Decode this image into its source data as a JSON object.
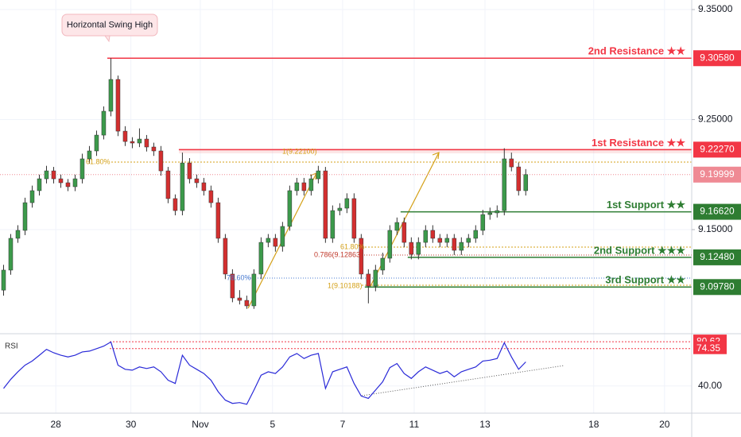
{
  "chart_data": {
    "type": "candlestick",
    "ylim": [
      9.0554,
      9.3587
    ],
    "yticks": [
      {
        "value": 9.35,
        "label": "9.35000"
      },
      {
        "value": 9.25,
        "label": "9.25000"
      },
      {
        "value": 9.15,
        "label": "9.15000"
      }
    ],
    "xlim": [
      0,
      96.7
    ],
    "xticks": [
      {
        "value": 7.8,
        "label": "28"
      },
      {
        "value": 18.3,
        "label": "30"
      },
      {
        "value": 28.0,
        "label": "Nov"
      },
      {
        "value": 38.1,
        "label": "5"
      },
      {
        "value": 47.9,
        "label": "7"
      },
      {
        "value": 57.9,
        "label": "11"
      },
      {
        "value": 67.8,
        "label": "13"
      },
      {
        "value": 83.0,
        "label": "18"
      },
      {
        "value": 92.9,
        "label": "20"
      }
    ],
    "grid": true,
    "up_color": "#3c9a4b",
    "down_color": "#d32f2f",
    "candles": [
      [
        9.095,
        9.118,
        9.09,
        9.1132
      ],
      [
        9.1132,
        9.146,
        9.109,
        9.1421
      ],
      [
        9.1421,
        9.154,
        9.138,
        9.1493
      ],
      [
        9.1493,
        9.179,
        9.145,
        9.1745
      ],
      [
        9.1745,
        9.19,
        9.17,
        9.1854
      ],
      [
        9.1854,
        9.2,
        9.181,
        9.1962
      ],
      [
        9.1962,
        9.208,
        9.192,
        9.2034
      ],
      [
        9.2034,
        9.207,
        9.192,
        9.1962
      ],
      [
        9.1962,
        9.2,
        9.188,
        9.1926
      ],
      [
        9.1926,
        9.196,
        9.185,
        9.189
      ],
      [
        9.189,
        9.2,
        9.185,
        9.1962
      ],
      [
        9.1962,
        9.219,
        9.192,
        9.2143
      ],
      [
        9.2143,
        9.226,
        9.21,
        9.2215
      ],
      [
        9.2215,
        9.24,
        9.217,
        9.2359
      ],
      [
        9.2359,
        9.262,
        9.232,
        9.2576
      ],
      [
        9.2576,
        9.3058,
        9.253,
        9.2865
      ],
      [
        9.2865,
        9.29,
        9.235,
        9.2395
      ],
      [
        9.2395,
        9.244,
        9.226,
        9.2301
      ],
      [
        9.2301,
        9.234,
        9.224,
        9.2287
      ],
      [
        9.2287,
        9.242,
        9.225,
        9.2323
      ],
      [
        9.2323,
        9.236,
        9.221,
        9.2251
      ],
      [
        9.2251,
        9.229,
        9.217,
        9.2215
      ],
      [
        9.2215,
        9.226,
        9.199,
        9.2034
      ],
      [
        9.2034,
        9.207,
        9.174,
        9.1782
      ],
      [
        9.1782,
        9.182,
        9.163,
        9.1673
      ],
      [
        9.1673,
        9.22,
        9.163,
        9.2106
      ],
      [
        9.2106,
        9.215,
        9.192,
        9.1962
      ],
      [
        9.1962,
        9.2,
        9.188,
        9.1926
      ],
      [
        9.1926,
        9.197,
        9.181,
        9.1854
      ],
      [
        9.1854,
        9.19,
        9.17,
        9.1745
      ],
      [
        9.1745,
        9.179,
        9.138,
        9.1421
      ],
      [
        9.1421,
        9.146,
        9.105,
        9.1096
      ],
      [
        9.1096,
        9.114,
        9.084,
        9.0879
      ],
      [
        9.0879,
        9.095,
        9.082,
        9.0857
      ],
      [
        9.0857,
        9.09,
        9.078,
        9.0807
      ],
      [
        9.0807,
        9.114,
        9.078,
        9.1096
      ],
      [
        9.1096,
        9.143,
        9.105,
        9.1384
      ],
      [
        9.1384,
        9.146,
        9.134,
        9.1421
      ],
      [
        9.1421,
        9.146,
        9.13,
        9.1348
      ],
      [
        9.1348,
        9.157,
        9.13,
        9.1529
      ],
      [
        9.1529,
        9.19,
        9.149,
        9.1854
      ],
      [
        9.1854,
        9.197,
        9.181,
        9.1926
      ],
      [
        9.1926,
        9.197,
        9.181,
        9.1854
      ],
      [
        9.1854,
        9.2,
        9.181,
        9.1962
      ],
      [
        9.1962,
        9.208,
        9.192,
        9.2034
      ],
      [
        9.2034,
        9.207,
        9.138,
        9.1421
      ],
      [
        9.1421,
        9.172,
        9.138,
        9.1673
      ],
      [
        9.1673,
        9.174,
        9.163,
        9.1695
      ],
      [
        9.1695,
        9.183,
        9.165,
        9.1782
      ],
      [
        9.1782,
        9.183,
        9.138,
        9.1421
      ],
      [
        9.1421,
        9.146,
        9.105,
        9.1096
      ],
      [
        9.1096,
        9.114,
        9.083,
        9.0987
      ],
      [
        9.0987,
        9.118,
        9.094,
        9.1132
      ],
      [
        9.1132,
        9.129,
        9.109,
        9.124
      ],
      [
        9.124,
        9.154,
        9.12,
        9.1493
      ],
      [
        9.1493,
        9.161,
        9.145,
        9.1565
      ],
      [
        9.1565,
        9.161,
        9.134,
        9.1384
      ],
      [
        9.1384,
        9.143,
        9.123,
        9.1276
      ],
      [
        9.1276,
        9.143,
        9.123,
        9.1384
      ],
      [
        9.1384,
        9.154,
        9.134,
        9.1493
      ],
      [
        9.1493,
        9.154,
        9.138,
        9.1421
      ],
      [
        9.1421,
        9.146,
        9.134,
        9.1384
      ],
      [
        9.1384,
        9.146,
        9.134,
        9.1421
      ],
      [
        9.1421,
        9.146,
        9.127,
        9.1312
      ],
      [
        9.1312,
        9.143,
        9.127,
        9.1384
      ],
      [
        9.1384,
        9.146,
        9.134,
        9.1421
      ],
      [
        9.1421,
        9.154,
        9.138,
        9.1493
      ],
      [
        9.1493,
        9.168,
        9.145,
        9.1637
      ],
      [
        9.1637,
        9.17,
        9.159,
        9.1652
      ],
      [
        9.1652,
        9.172,
        9.161,
        9.1673
      ],
      [
        9.1673,
        9.224,
        9.163,
        9.2143
      ],
      [
        9.2143,
        9.22,
        9.203,
        9.207
      ],
      [
        9.207,
        9.211,
        9.181,
        9.1854
      ],
      [
        9.1854,
        9.205,
        9.181,
        9.19999
      ]
    ],
    "current_price": {
      "value": 9.19999,
      "label": "9.19999",
      "color": "#ef8a94"
    },
    "levels": [
      {
        "name": "2nd Resistance ★★",
        "value": 9.3058,
        "label": "9.30580",
        "color": "#f23645"
      },
      {
        "name": "1st Resistance ★★",
        "value": 9.2227,
        "label": "9.22270",
        "color": "#f23645"
      },
      {
        "name": "1st Support ★★",
        "value": 9.1662,
        "label": "9.16620",
        "color": "#2e7d32"
      },
      {
        "name": "2nd Support ★★★",
        "value": 9.1248,
        "label": "9.12480",
        "color": "#2e7d32"
      },
      {
        "name": "3rd Support ★★",
        "value": 9.0978,
        "label": "9.09780",
        "color": "#2e7d32"
      }
    ],
    "swing_high_note": "Horizontal Swing High",
    "fib_labels": [
      {
        "text": "61.80%",
        "color": "#d4a017"
      },
      {
        "text": "1(9.22100)",
        "color": "#d4a017"
      },
      {
        "text": "78.60%",
        "color": "#4a7bd0"
      },
      {
        "text": "61.80%",
        "color": "#d4a017"
      },
      {
        "text": "0.786(9.12863)",
        "color": "#c0392b"
      },
      {
        "text": "1(9.10188)",
        "color": "#d4a017"
      }
    ],
    "rsi": {
      "title": "RSI",
      "color": "#2a2ad8",
      "ylim": [
        15,
        88
      ],
      "yticks": [
        {
          "value": 40,
          "label": "40.00"
        }
      ],
      "levels": [
        {
          "value": 80.62,
          "label": "80.62"
        },
        {
          "value": 74.35,
          "label": "74.35"
        }
      ],
      "level_color": "#f23645",
      "values": [
        37.7,
        46.1,
        53.0,
        59.1,
        62.9,
        68.2,
        73.6,
        70.5,
        68.2,
        66.7,
        68.2,
        71.3,
        72.0,
        74.3,
        76.6,
        80.4,
        59.1,
        55.3,
        54.5,
        57.5,
        56.0,
        57.5,
        53.0,
        45.3,
        42.3,
        68.2,
        59.1,
        55.3,
        51.4,
        45.3,
        34.7,
        27.0,
        24.0,
        24.7,
        23.2,
        36.2,
        49.9,
        53.0,
        51.4,
        57.5,
        66.7,
        69.8,
        65.2,
        68.2,
        69.8,
        37.7,
        53.0,
        55.3,
        57.5,
        42.3,
        30.8,
        28.6,
        36.2,
        43.8,
        56.8,
        60.6,
        51.4,
        46.9,
        53.0,
        57.5,
        54.5,
        51.4,
        53.7,
        48.4,
        53.0,
        55.3,
        57.5,
        62.9,
        63.7,
        65.2,
        79.7,
        66.7,
        55.3,
        62.1
      ]
    }
  }
}
